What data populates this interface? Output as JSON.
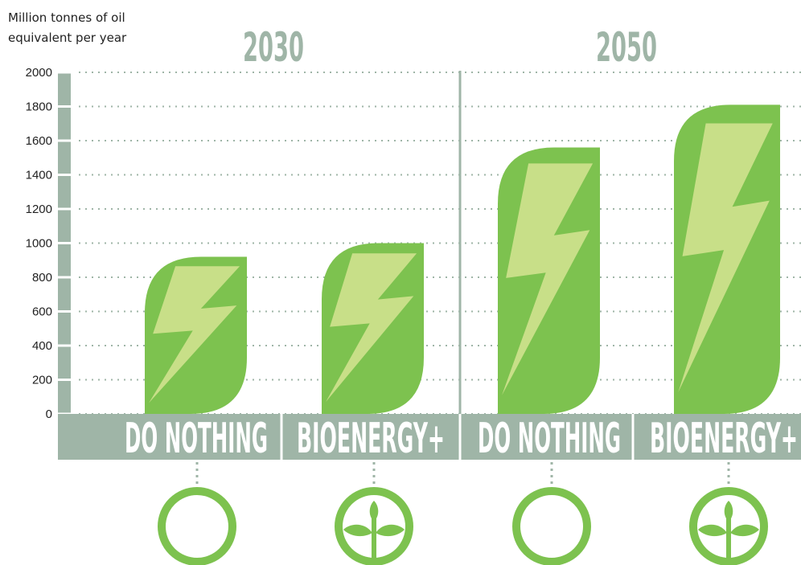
{
  "chart_data": {
    "type": "bar",
    "y_label": [
      "Million tonnes of oil",
      "equivalent per year"
    ],
    "groups": [
      "2030",
      "2050"
    ],
    "categories": [
      "DO NOTHING",
      "BIOENERGY+",
      "DO NOTHING",
      "BIOENERGY+"
    ],
    "values": [
      920,
      1000,
      1560,
      1810
    ],
    "color": "#7dc24f",
    "ylim": [
      0,
      2000
    ],
    "yticks": [
      0,
      200,
      400,
      600,
      800,
      1000,
      1200,
      1400,
      1600,
      1800,
      2000
    ],
    "grid": true
  }
}
